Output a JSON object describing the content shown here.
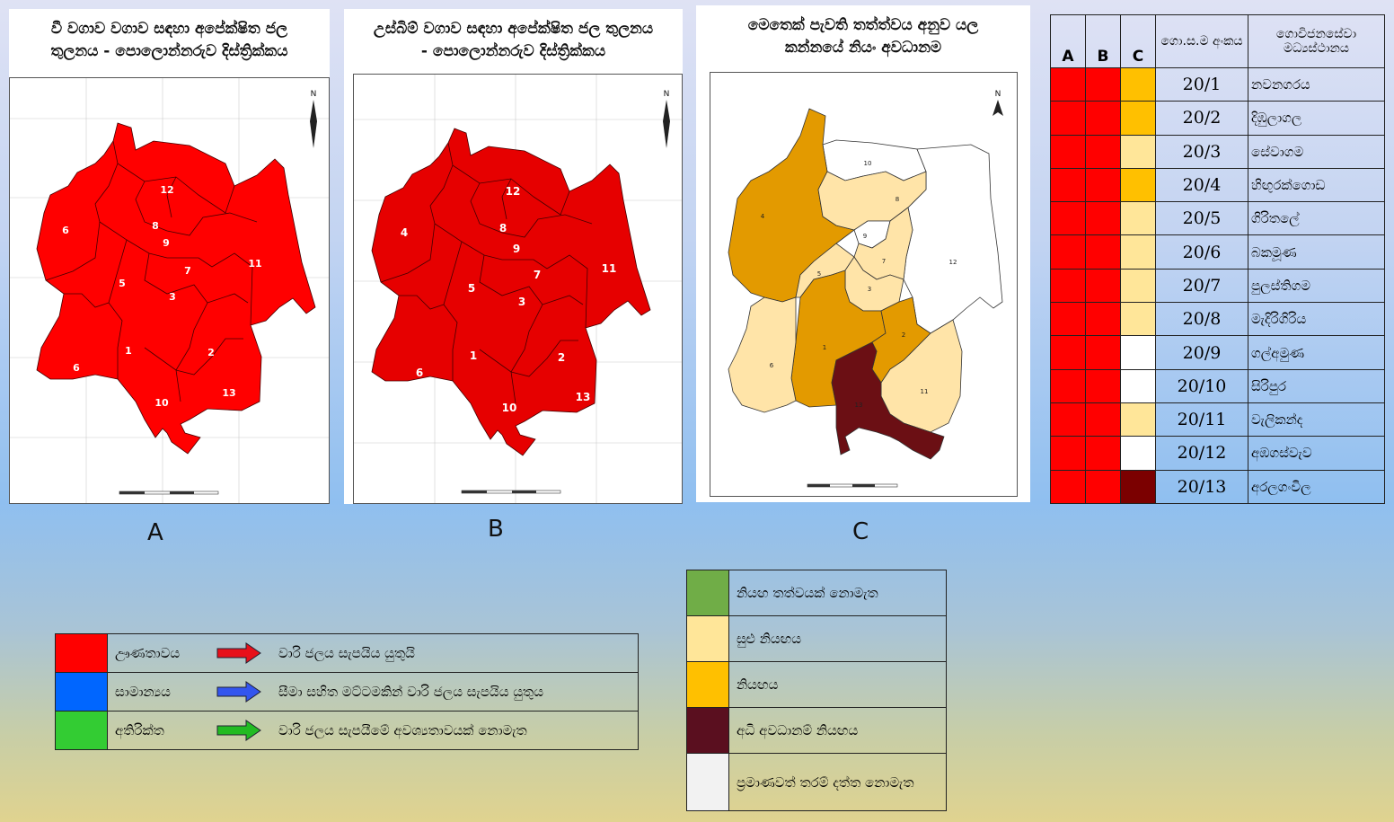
{
  "panels": [
    {
      "id": "A",
      "title": "වී වගාව වගාව සඳහා අපේක්ෂිත ජල තුලනය - පොලොන්නරුව දිස්ත්‍රික්කය",
      "label": "A",
      "regions": [
        {
          "n": "12"
        },
        {
          "n": "6"
        },
        {
          "n": "8"
        },
        {
          "n": "9"
        },
        {
          "n": "7"
        },
        {
          "n": "5"
        },
        {
          "n": "3"
        },
        {
          "n": "11"
        },
        {
          "n": "1"
        },
        {
          "n": "2"
        },
        {
          "n": "6"
        },
        {
          "n": "10"
        },
        {
          "n": "13"
        }
      ],
      "north": "N",
      "fill": "#ff0000"
    },
    {
      "id": "B",
      "title": "උස්බිම් වගාව සඳහා අපේක්ෂිත ජල තුලනය - පොලොන්නරුව දිස්ත්‍රික්කය",
      "label": "B",
      "regions": [
        {
          "n": "12"
        },
        {
          "n": "4"
        },
        {
          "n": "8"
        },
        {
          "n": "9"
        },
        {
          "n": "7"
        },
        {
          "n": "5"
        },
        {
          "n": "3"
        },
        {
          "n": "11"
        },
        {
          "n": "1"
        },
        {
          "n": "2"
        },
        {
          "n": "6"
        },
        {
          "n": "10"
        },
        {
          "n": "13"
        }
      ],
      "north": "N",
      "fill": "#e60000"
    },
    {
      "id": "C",
      "title": "මෙතෙක් පැවති තත්ත්වය අනුව යල කන්නයේ නියං අවධානම",
      "label": "C",
      "north": "N",
      "regions": [
        {
          "n": "10"
        },
        {
          "n": "8"
        },
        {
          "n": "4"
        },
        {
          "n": "9"
        },
        {
          "n": "7"
        },
        {
          "n": "5"
        },
        {
          "n": "3"
        },
        {
          "n": "12"
        },
        {
          "n": "1"
        },
        {
          "n": "2"
        },
        {
          "n": "6"
        },
        {
          "n": "11"
        },
        {
          "n": "13"
        }
      ]
    }
  ],
  "status_table": {
    "headers": [
      "A",
      "B",
      "C",
      "ගො.ස.ම අංකය",
      "ගොවිජනසේවා මධ්‍යස්ථානය"
    ],
    "rows": [
      {
        "a": "#ff0000",
        "b": "#ff0000",
        "c": "#ffc000",
        "code": "20/1",
        "name": "නවනගරය"
      },
      {
        "a": "#ff0000",
        "b": "#ff0000",
        "c": "#ffc000",
        "code": "20/2",
        "name": "දිඹුලාගල"
      },
      {
        "a": "#ff0000",
        "b": "#ff0000",
        "c": "#ffe699",
        "code": "20/3",
        "name": "සේවාගම"
      },
      {
        "a": "#ff0000",
        "b": "#ff0000",
        "c": "#ffc000",
        "code": "20/4",
        "name": "හිඟුරක්ගොඩ"
      },
      {
        "a": "#ff0000",
        "b": "#ff0000",
        "c": "#ffe699",
        "code": "20/5",
        "name": "ගිරිතලේ"
      },
      {
        "a": "#ff0000",
        "b": "#ff0000",
        "c": "#ffe699",
        "code": "20/6",
        "name": "බකමූණ"
      },
      {
        "a": "#ff0000",
        "b": "#ff0000",
        "c": "#ffe699",
        "code": "20/7",
        "name": "පුලස්තිගම"
      },
      {
        "a": "#ff0000",
        "b": "#ff0000",
        "c": "#ffe699",
        "code": "20/8",
        "name": "මැදිරිගිරිය"
      },
      {
        "a": "#ff0000",
        "b": "#ff0000",
        "c": "#ffffff",
        "code": "20/9",
        "name": "ගල්අමුණ"
      },
      {
        "a": "#ff0000",
        "b": "#ff0000",
        "c": "#ffffff",
        "code": "20/10",
        "name": "සිරිපුර"
      },
      {
        "a": "#ff0000",
        "b": "#ff0000",
        "c": "#ffe699",
        "code": "20/11",
        "name": "වැලිකන්ද"
      },
      {
        "a": "#ff0000",
        "b": "#ff0000",
        "c": "#ffffff",
        "code": "20/12",
        "name": "අඹගස්වැව"
      },
      {
        "a": "#ff0000",
        "b": "#ff0000",
        "c": "#7b0000",
        "code": "20/13",
        "name": "අරලගංවිල"
      }
    ]
  },
  "balance_legend": [
    {
      "color": "#ff0000",
      "arrow": "#e8101a",
      "label": "ඌණතාවය",
      "desc": "වාරි ජලය සැපයිය යුතුයි"
    },
    {
      "color": "#0066ff",
      "arrow": "#3355ee",
      "label": "සාමාන්‍යය",
      "desc": "සීමා සහිත මට්ටමකින් වාරි ජලය සැපයිය යුතුය"
    },
    {
      "color": "#33cc33",
      "arrow": "#22bb22",
      "label": "අතිරික්ත",
      "desc": "වාරි ජලය සැපයීමේ අවශ්‍යතාවයක් නොමැත"
    }
  ],
  "drought_legend": [
    {
      "color": "#70ad47",
      "label": "නියඟ තත්වයක් නොමැත"
    },
    {
      "color": "#ffe699",
      "label": "සුළු නියඟය"
    },
    {
      "color": "#ffc000",
      "label": "නියඟය"
    },
    {
      "color": "#5a0f1f",
      "label": "අධි අවධානම් නියඟය"
    },
    {
      "color": "#f2f2f2",
      "label": "ප්‍රමාණවත් තරම් දත්ත නොමැත"
    }
  ]
}
